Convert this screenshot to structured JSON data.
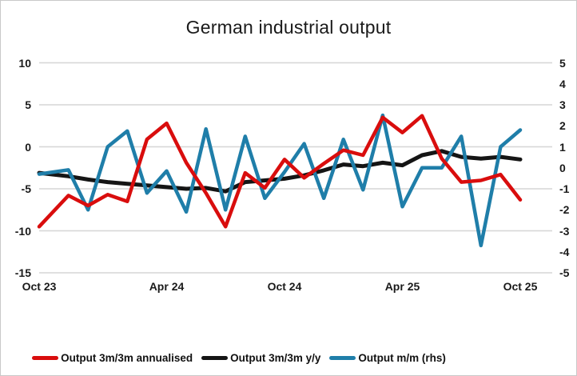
{
  "title": "German industrial output",
  "colors": {
    "red_series": "#d90d0d",
    "black_series": "#151515",
    "blue_series": "#1f7ea9",
    "gridline": "#d6d6d6",
    "frame_border": "#c9c9c9",
    "text": "#1a1a1a"
  },
  "chart_data": {
    "type": "line",
    "title": "German industrial output",
    "categories": [
      "Oct 23",
      "Nov 23",
      "Dec 23",
      "Jan 24",
      "Feb 24",
      "Mar 24",
      "Apr 24",
      "May 24",
      "Jun 24",
      "Jul 24",
      "Aug 24",
      "Sep 24",
      "Oct 24",
      "Nov 24",
      "Dec 24",
      "Jan 25",
      "Feb 25",
      "Mar 25",
      "Apr 25",
      "May 25",
      "Jun 25",
      "Jul 25",
      "Aug 25",
      "Sep 25",
      "Oct 25"
    ],
    "x_ticks": [
      {
        "label": "Oct 23",
        "i": 0
      },
      {
        "label": "Apr 24",
        "i": 6
      },
      {
        "label": "Oct 24",
        "i": 12
      },
      {
        "label": "Apr 25",
        "i": 18
      },
      {
        "label": "Oct 25",
        "i": 24
      }
    ],
    "left_axis": {
      "ticks": [
        10,
        5,
        0,
        -5,
        -10,
        -15
      ],
      "range": [
        -15,
        10
      ]
    },
    "right_axis": {
      "ticks": [
        5,
        4,
        3,
        2,
        1,
        0,
        -1,
        -2,
        -3,
        -4,
        -5
      ],
      "range": [
        -5,
        5
      ]
    },
    "grid": true,
    "legend_position": "bottom",
    "series": [
      {
        "name": "Output 3m/3m annualised",
        "axis": "left",
        "color": "#d90d0d",
        "values": [
          -9.5,
          -5.8,
          -7.0,
          -5.7,
          -6.5,
          0.9,
          2.8,
          -1.9,
          -5.5,
          -9.5,
          -3.1,
          -4.9,
          -1.5,
          -3.7,
          -2.0,
          -0.4,
          -1.0,
          3.5,
          1.7,
          3.7,
          -1.4,
          -4.2,
          -4.0,
          -3.3,
          -6.3
        ]
      },
      {
        "name": "Output 3m/3m y/y",
        "axis": "left",
        "color": "#151515",
        "values": [
          -3.1,
          -3.5,
          -3.9,
          -4.2,
          -4.4,
          -4.6,
          -4.8,
          -5.0,
          -4.9,
          -5.3,
          -4.2,
          -4.0,
          -3.8,
          -3.4,
          -2.8,
          -2.1,
          -2.3,
          -1.9,
          -2.2,
          -1.0,
          -0.5,
          -1.2,
          -1.4,
          -1.2,
          -1.5
        ]
      },
      {
        "name": "Output m/m (rhs)",
        "axis": "right",
        "color": "#1f7ea9",
        "values": [
          -0.3,
          -0.1,
          -2.0,
          1.0,
          1.75,
          -1.2,
          -0.15,
          -2.1,
          1.85,
          -2.0,
          1.5,
          -1.45,
          -0.2,
          1.15,
          -1.45,
          1.35,
          -1.05,
          2.5,
          -1.85,
          0.0,
          0.0,
          1.5,
          -3.7,
          1.0,
          1.8
        ]
      }
    ]
  }
}
